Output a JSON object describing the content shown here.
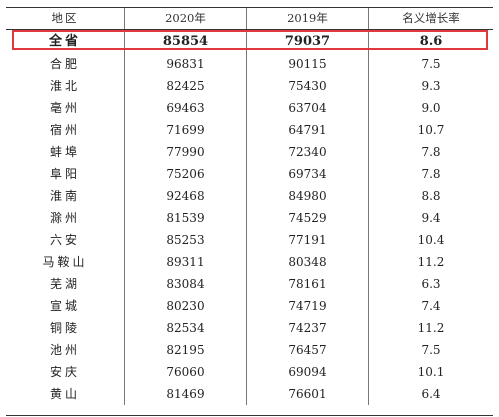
{
  "header": {
    "region": "地区",
    "y2020": "2020年",
    "y2019": "2019年",
    "growth": "名义增长率"
  },
  "total": {
    "region": "全省",
    "y2020": "85854",
    "y2019": "79037",
    "growth": "8.6"
  },
  "rows": [
    {
      "region": "合肥",
      "y2020": "96831",
      "y2019": "90115",
      "growth": "7.5"
    },
    {
      "region": "淮北",
      "y2020": "82425",
      "y2019": "75430",
      "growth": "9.3"
    },
    {
      "region": "亳州",
      "y2020": "69463",
      "y2019": "63704",
      "growth": "9.0"
    },
    {
      "region": "宿州",
      "y2020": "71699",
      "y2019": "64791",
      "growth": "10.7"
    },
    {
      "region": "蚌埠",
      "y2020": "77990",
      "y2019": "72340",
      "growth": "7.8"
    },
    {
      "region": "阜阳",
      "y2020": "75206",
      "y2019": "69734",
      "growth": "7.8"
    },
    {
      "region": "淮南",
      "y2020": "92468",
      "y2019": "84980",
      "growth": "8.8"
    },
    {
      "region": "滁州",
      "y2020": "81539",
      "y2019": "74529",
      "growth": "9.4"
    },
    {
      "region": "六安",
      "y2020": "85253",
      "y2019": "77191",
      "growth": "10.4"
    },
    {
      "region": "马鞍山",
      "y2020": "89311",
      "y2019": "80348",
      "growth": "11.2"
    },
    {
      "region": "芜湖",
      "y2020": "83084",
      "y2019": "78161",
      "growth": "6.3"
    },
    {
      "region": "宣城",
      "y2020": "80230",
      "y2019": "74719",
      "growth": "7.4"
    },
    {
      "region": "铜陵",
      "y2020": "82534",
      "y2019": "74237",
      "growth": "11.2"
    },
    {
      "region": "池州",
      "y2020": "82195",
      "y2019": "76457",
      "growth": "7.5"
    },
    {
      "region": "安庆",
      "y2020": "76060",
      "y2019": "69094",
      "growth": "10.1"
    },
    {
      "region": "黄山",
      "y2020": "81469",
      "y2019": "76601",
      "growth": "6.4"
    }
  ],
  "colors": {
    "highlight": "#e0383e",
    "rule": "#333333"
  }
}
